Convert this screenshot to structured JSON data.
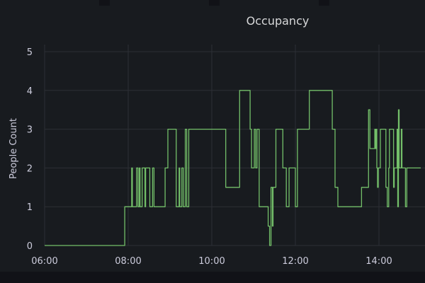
{
  "colors": {
    "background": "#181b1f",
    "grid": "#2c2f35",
    "series": "#73bf69",
    "text": "#ccccdc"
  },
  "chart_data": {
    "type": "line",
    "title": "Occupancy",
    "ylabel": "People Count",
    "xlabel": "",
    "ylim": [
      0,
      5
    ],
    "yticks": [
      "0",
      "1",
      "2",
      "3",
      "4",
      "5"
    ],
    "xticks": [
      "06:00",
      "08:00",
      "10:00",
      "12:00",
      "14:00"
    ],
    "xlim": [
      "06:00",
      "15:00"
    ],
    "grid": true,
    "legend": "none",
    "series": [
      {
        "x": [
          "06:00",
          "07:55",
          "07:55",
          "08:05",
          "08:05",
          "08:06",
          "08:06",
          "08:12",
          "08:12",
          "08:14",
          "08:14",
          "08:16",
          "08:16",
          "08:17",
          "08:17",
          "08:20",
          "08:20",
          "08:24",
          "08:24",
          "08:25",
          "08:25",
          "08:31",
          "08:31",
          "08:35",
          "08:35",
          "08:37",
          "08:37",
          "08:53",
          "08:53",
          "08:57",
          "08:57",
          "09:09",
          "09:09",
          "09:13",
          "09:13",
          "09:14",
          "09:14",
          "09:17",
          "09:17",
          "09:19",
          "09:19",
          "09:22",
          "09:22",
          "09:24",
          "09:24",
          "09:27",
          "09:27",
          "09:30",
          "09:30",
          "10:20",
          "10:20",
          "10:40",
          "10:40",
          "10:55",
          "10:55",
          "10:57",
          "10:57",
          "11:01",
          "11:01",
          "11:03",
          "11:03",
          "11:05",
          "11:05",
          "11:08",
          "11:08",
          "11:21",
          "11:21",
          "11:23",
          "11:23",
          "11:25",
          "11:25",
          "11:27",
          "11:27",
          "11:28",
          "11:28",
          "11:32",
          "11:32",
          "11:42",
          "11:42",
          "11:43",
          "11:43",
          "11:47",
          "11:47",
          "11:49",
          "11:49",
          "11:51",
          "11:51",
          "11:54",
          "11:54",
          "12:00",
          "12:00",
          "12:03",
          "12:03",
          "12:20",
          "12:20",
          "12:53",
          "12:53",
          "12:57",
          "12:57",
          "13:01",
          "13:01",
          "13:35",
          "13:35",
          "13:45",
          "13:45",
          "13:47",
          "13:47",
          "13:54",
          "13:54",
          "13:55",
          "13:55",
          "13:56",
          "13:56",
          "13:57",
          "13:57",
          "13:58",
          "13:58",
          "13:59",
          "13:59",
          "14:02",
          "14:02",
          "14:10",
          "14:10",
          "14:12",
          "14:12",
          "14:14",
          "14:14",
          "14:15",
          "14:15",
          "14:21",
          "14:21",
          "14:22",
          "14:22",
          "14:26",
          "14:26",
          "14:27",
          "14:27",
          "14:28",
          "14:28",
          "14:29",
          "14:29",
          "14:30",
          "14:30",
          "14:32",
          "14:32",
          "14:33",
          "14:33",
          "14:38",
          "14:38",
          "14:40",
          "14:40",
          "15:00"
        ],
        "values": [
          0,
          0,
          1,
          1,
          2,
          2,
          1,
          1,
          2,
          2,
          1,
          1,
          2,
          2,
          1,
          1,
          2,
          2,
          1,
          1,
          2,
          2,
          1,
          1,
          2,
          2,
          1,
          1,
          2,
          2,
          3,
          3,
          1,
          1,
          2,
          2,
          1,
          1,
          2,
          2,
          1,
          1,
          3,
          3,
          1,
          1,
          3,
          3,
          3,
          3,
          1.5,
          1.5,
          4,
          4,
          3,
          3,
          2,
          2,
          3,
          3,
          2,
          2,
          3,
          3,
          1,
          1,
          0.5,
          0.5,
          0,
          0,
          1.5,
          1.5,
          0.5,
          0.5,
          1.5,
          1.5,
          3,
          3,
          2,
          2,
          2,
          2,
          1,
          1,
          1,
          1,
          2,
          2,
          2,
          2,
          1,
          1,
          3,
          3,
          4,
          4,
          3,
          3,
          1.5,
          1.5,
          1,
          1,
          1.5,
          1.5,
          3.5,
          3.5,
          2.5,
          2.5,
          3,
          3,
          2.5,
          2.5,
          3,
          3,
          2,
          2,
          1.5,
          1.5,
          2,
          2,
          3,
          3,
          1.5,
          1.5,
          1,
          1,
          2,
          2,
          3,
          3,
          1.5,
          1.5,
          2,
          2,
          3,
          3,
          1,
          1,
          3.5,
          3.5,
          2,
          2,
          2,
          2,
          3,
          3,
          2,
          2,
          1,
          1,
          2,
          2
        ]
      }
    ]
  }
}
